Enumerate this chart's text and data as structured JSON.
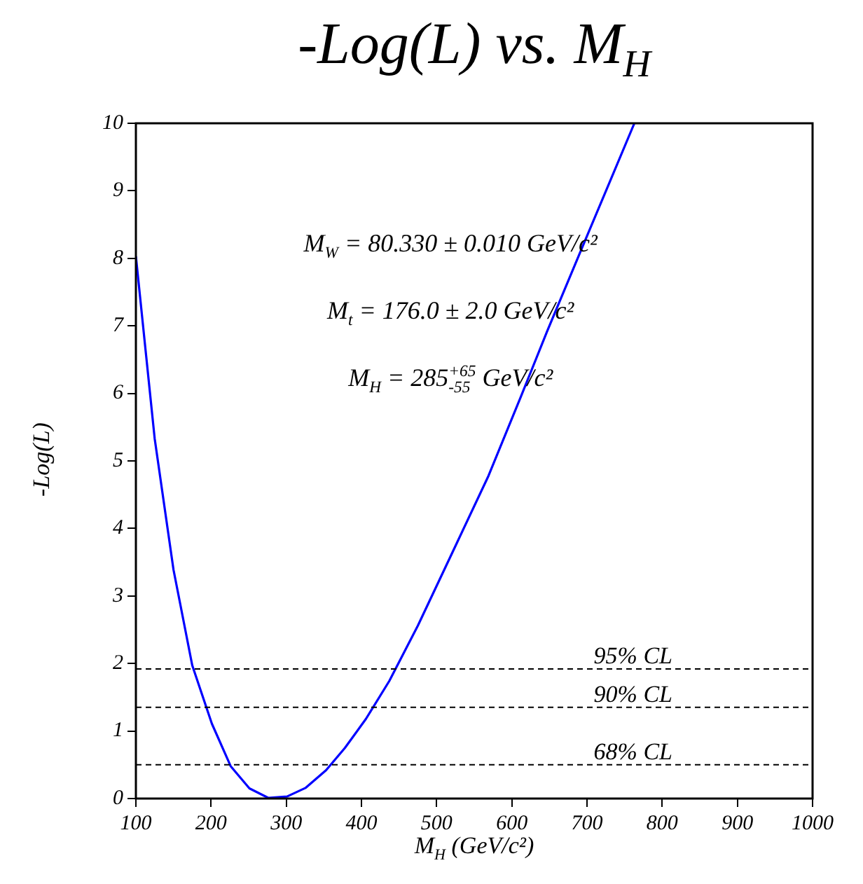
{
  "chart_data": {
    "type": "line",
    "title": "-Log(L)  vs.  M$_{H}$",
    "xlabel": "M$_{H}$  (GeV/c²)",
    "ylabel": "-Log(L)",
    "annotations": [
      "M$_{W}$ = 80.330 ± 0.010 GeV/c²",
      "M$_{t}$ = 176.0 ± 2.0 GeV/c²",
      "M$_{H}$ = 285$^{+65}$$_{-55}$ GeV/c²"
    ],
    "x": [
      100,
      125,
      150,
      175,
      201,
      226,
      251,
      276,
      301,
      326,
      353,
      378,
      406,
      437,
      475,
      525,
      569,
      612,
      647,
      700,
      763
    ],
    "series": [
      {
        "color": "#0000ff",
        "values": [
          8.03,
          5.33,
          3.39,
          1.97,
          1.11,
          0.48,
          0.15,
          0.01,
          0.03,
          0.16,
          0.42,
          0.75,
          1.18,
          1.74,
          2.56,
          3.74,
          4.78,
          5.95,
          6.92,
          8.33,
          10
        ]
      }
    ],
    "xlim": [
      100,
      1000
    ],
    "ylim": [
      0,
      10
    ],
    "xticks": [
      100,
      200,
      300,
      400,
      500,
      600,
      700,
      800,
      900,
      1000
    ],
    "yticks": [
      0,
      1,
      2,
      3,
      4,
      5,
      6,
      7,
      8,
      9,
      10
    ],
    "ref_lines": [
      {
        "axis": "y",
        "value": 1.92,
        "label": "95% CL",
        "line_style": "dashed"
      },
      {
        "axis": "y",
        "value": 1.35,
        "label": "90% CL",
        "line_style": "dashed"
      },
      {
        "axis": "y",
        "value": 0.5,
        "label": "68% CL",
        "line_style": "dashed"
      }
    ],
    "marker": "none",
    "line_style": "solid"
  }
}
